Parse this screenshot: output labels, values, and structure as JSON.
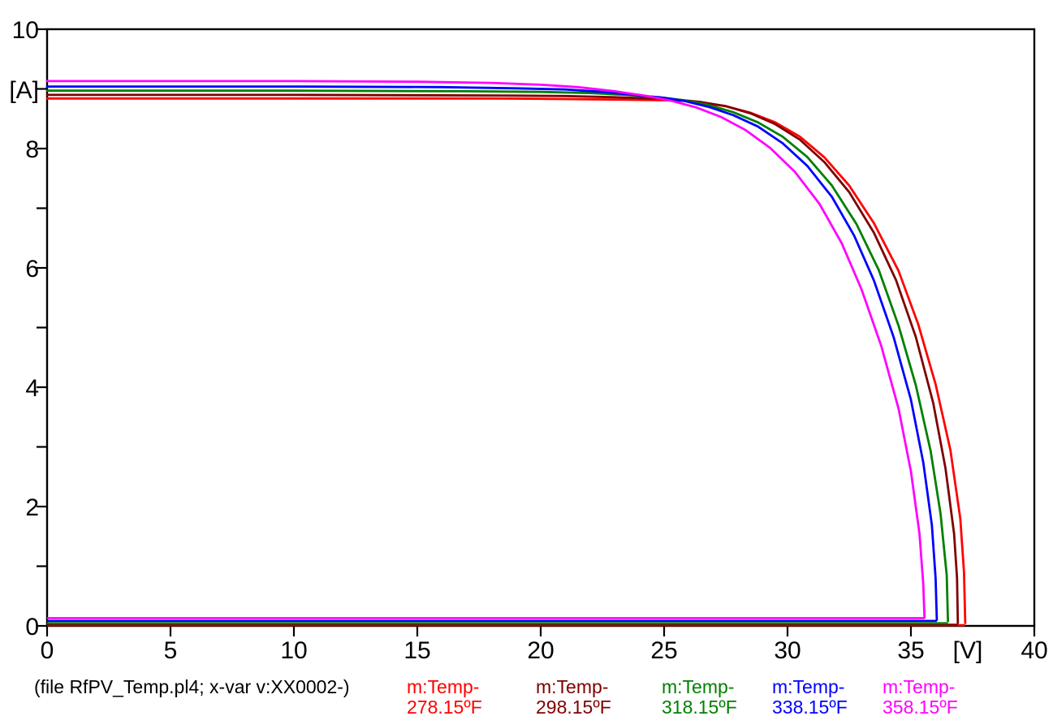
{
  "chart_data": {
    "type": "line",
    "title": "",
    "xlabel": "[V]",
    "ylabel": "[A]",
    "x_range": [
      0,
      40
    ],
    "y_range": [
      0,
      10
    ],
    "grid": false,
    "legend_position": "bottom",
    "x_axis": {
      "unit_label": "[V]",
      "unit_label_at_value": 37.3,
      "major_tick_step": 5,
      "tick_values": [
        0,
        5,
        10,
        15,
        20,
        25,
        30,
        35,
        40
      ],
      "tick_labels": [
        "0",
        "5",
        "10",
        "15",
        "20",
        "25",
        "30",
        "35",
        "40"
      ]
    },
    "y_axis": {
      "unit_label": "[A]",
      "unit_label_at_value": 9,
      "minor_tick_step": 1,
      "minor_tick_values": [
        0,
        1,
        2,
        3,
        4,
        5,
        6,
        7,
        8,
        9,
        10
      ],
      "labeled_ticks": [
        {
          "value": 0,
          "label": "0"
        },
        {
          "value": 2,
          "label": "2"
        },
        {
          "value": 4,
          "label": "4"
        },
        {
          "value": 6,
          "label": "6"
        },
        {
          "value": 8,
          "label": "8"
        },
        {
          "value": 10,
          "label": "10"
        }
      ]
    },
    "footer": "(file RfPV_Temp.pl4; x-var v:XX0002-)",
    "series": [
      {
        "name": "m:Temp-278.15ºF",
        "legend_line1": "m:Temp-",
        "legend_line2": "278.15ºF",
        "color": "#ff0000",
        "isc_A": 8.84,
        "voc_V": 37.2,
        "points_V_A": [
          [
            0,
            8.84
          ],
          [
            10,
            8.84
          ],
          [
            18,
            8.84
          ],
          [
            21,
            8.83
          ],
          [
            23,
            8.82
          ],
          [
            25,
            8.81
          ],
          [
            25.8,
            8.8
          ],
          [
            26.5,
            8.77
          ],
          [
            27.5,
            8.71
          ],
          [
            28.5,
            8.6
          ],
          [
            29.5,
            8.44
          ],
          [
            30.5,
            8.2
          ],
          [
            31.5,
            7.85
          ],
          [
            32.5,
            7.38
          ],
          [
            33.5,
            6.75
          ],
          [
            34.5,
            5.95
          ],
          [
            35.3,
            5.05
          ],
          [
            36.0,
            4.05
          ],
          [
            36.6,
            2.95
          ],
          [
            37.0,
            1.8
          ],
          [
            37.15,
            0.9
          ],
          [
            37.2,
            0.05
          ]
        ],
        "low_line": {
          "current_A": 0.012,
          "v_start": 0,
          "v_end": 37.2
        }
      },
      {
        "name": "m:Temp-298.15ºF",
        "legend_line1": "m:Temp-",
        "legend_line2": "298.15ºF",
        "color": "#7f0000",
        "isc_A": 8.9,
        "voc_V": 36.9,
        "points_V_A": [
          [
            0,
            8.9
          ],
          [
            10,
            8.9
          ],
          [
            18,
            8.89
          ],
          [
            21,
            8.88
          ],
          [
            23,
            8.86
          ],
          [
            24.5,
            8.84
          ],
          [
            25.8,
            8.81
          ],
          [
            26.5,
            8.78
          ],
          [
            27.5,
            8.71
          ],
          [
            28.5,
            8.59
          ],
          [
            29.5,
            8.41
          ],
          [
            30.5,
            8.15
          ],
          [
            31.5,
            7.77
          ],
          [
            32.5,
            7.27
          ],
          [
            33.5,
            6.59
          ],
          [
            34.4,
            5.79
          ],
          [
            35.2,
            4.84
          ],
          [
            35.9,
            3.74
          ],
          [
            36.4,
            2.64
          ],
          [
            36.75,
            1.54
          ],
          [
            36.87,
            0.8
          ],
          [
            36.9,
            0.05
          ]
        ],
        "low_line": {
          "current_A": 0.02,
          "v_start": 0,
          "v_end": 36.9
        }
      },
      {
        "name": "m:Temp-318.15ºF",
        "legend_line1": "m:Temp-",
        "legend_line2": "318.15ºF",
        "color": "#008000",
        "isc_A": 8.97,
        "voc_V": 36.5,
        "points_V_A": [
          [
            0,
            8.97
          ],
          [
            10,
            8.97
          ],
          [
            17,
            8.96
          ],
          [
            20,
            8.95
          ],
          [
            22,
            8.93
          ],
          [
            23.5,
            8.9
          ],
          [
            24.8,
            8.86
          ],
          [
            25.8,
            8.81
          ],
          [
            26.8,
            8.73
          ],
          [
            27.8,
            8.61
          ],
          [
            28.8,
            8.44
          ],
          [
            29.8,
            8.2
          ],
          [
            30.8,
            7.86
          ],
          [
            31.8,
            7.38
          ],
          [
            32.8,
            6.73
          ],
          [
            33.7,
            5.96
          ],
          [
            34.5,
            5.03
          ],
          [
            35.2,
            4.03
          ],
          [
            35.8,
            2.93
          ],
          [
            36.2,
            1.88
          ],
          [
            36.45,
            0.85
          ],
          [
            36.5,
            0.08
          ]
        ],
        "low_line": {
          "current_A": 0.045,
          "v_start": 0,
          "v_end": 36.5
        }
      },
      {
        "name": "m:Temp-338.15ºF",
        "legend_line1": "m:Temp-",
        "legend_line2": "338.15ºF",
        "color": "#0000ff",
        "isc_A": 9.04,
        "voc_V": 36.05,
        "points_V_A": [
          [
            0,
            9.04
          ],
          [
            10,
            9.04
          ],
          [
            16,
            9.03
          ],
          [
            19,
            9.01
          ],
          [
            21,
            8.99
          ],
          [
            22.5,
            8.95
          ],
          [
            24,
            8.89
          ],
          [
            25,
            8.85
          ],
          [
            25.8,
            8.8
          ],
          [
            26.8,
            8.7
          ],
          [
            27.8,
            8.56
          ],
          [
            28.8,
            8.37
          ],
          [
            29.8,
            8.09
          ],
          [
            30.8,
            7.71
          ],
          [
            31.8,
            7.19
          ],
          [
            32.7,
            6.54
          ],
          [
            33.5,
            5.79
          ],
          [
            34.3,
            4.84
          ],
          [
            35.0,
            3.79
          ],
          [
            35.5,
            2.74
          ],
          [
            35.85,
            1.69
          ],
          [
            36.0,
            0.8
          ],
          [
            36.05,
            0.1
          ]
        ],
        "low_line": {
          "current_A": 0.085,
          "v_start": 0,
          "v_end": 36.05
        }
      },
      {
        "name": "m:Temp-358.15ºF",
        "legend_line1": "m:Temp-",
        "legend_line2": "358.15ºF",
        "color": "#ff00ff",
        "isc_A": 9.13,
        "voc_V": 35.55,
        "points_V_A": [
          [
            0,
            9.13
          ],
          [
            10,
            9.13
          ],
          [
            15,
            9.12
          ],
          [
            18,
            9.1
          ],
          [
            20,
            9.07
          ],
          [
            21.5,
            9.03
          ],
          [
            23,
            8.96
          ],
          [
            24.3,
            8.88
          ],
          [
            25.3,
            8.8
          ],
          [
            26.3,
            8.69
          ],
          [
            27.3,
            8.53
          ],
          [
            28.3,
            8.31
          ],
          [
            29.3,
            8.01
          ],
          [
            30.3,
            7.61
          ],
          [
            31.3,
            7.07
          ],
          [
            32.2,
            6.41
          ],
          [
            33.0,
            5.64
          ],
          [
            33.8,
            4.69
          ],
          [
            34.5,
            3.64
          ],
          [
            35.0,
            2.59
          ],
          [
            35.35,
            1.54
          ],
          [
            35.5,
            0.7
          ],
          [
            35.55,
            0.14
          ]
        ],
        "low_line": {
          "current_A": 0.13,
          "v_start": 0,
          "v_end": 35.55
        }
      }
    ]
  }
}
